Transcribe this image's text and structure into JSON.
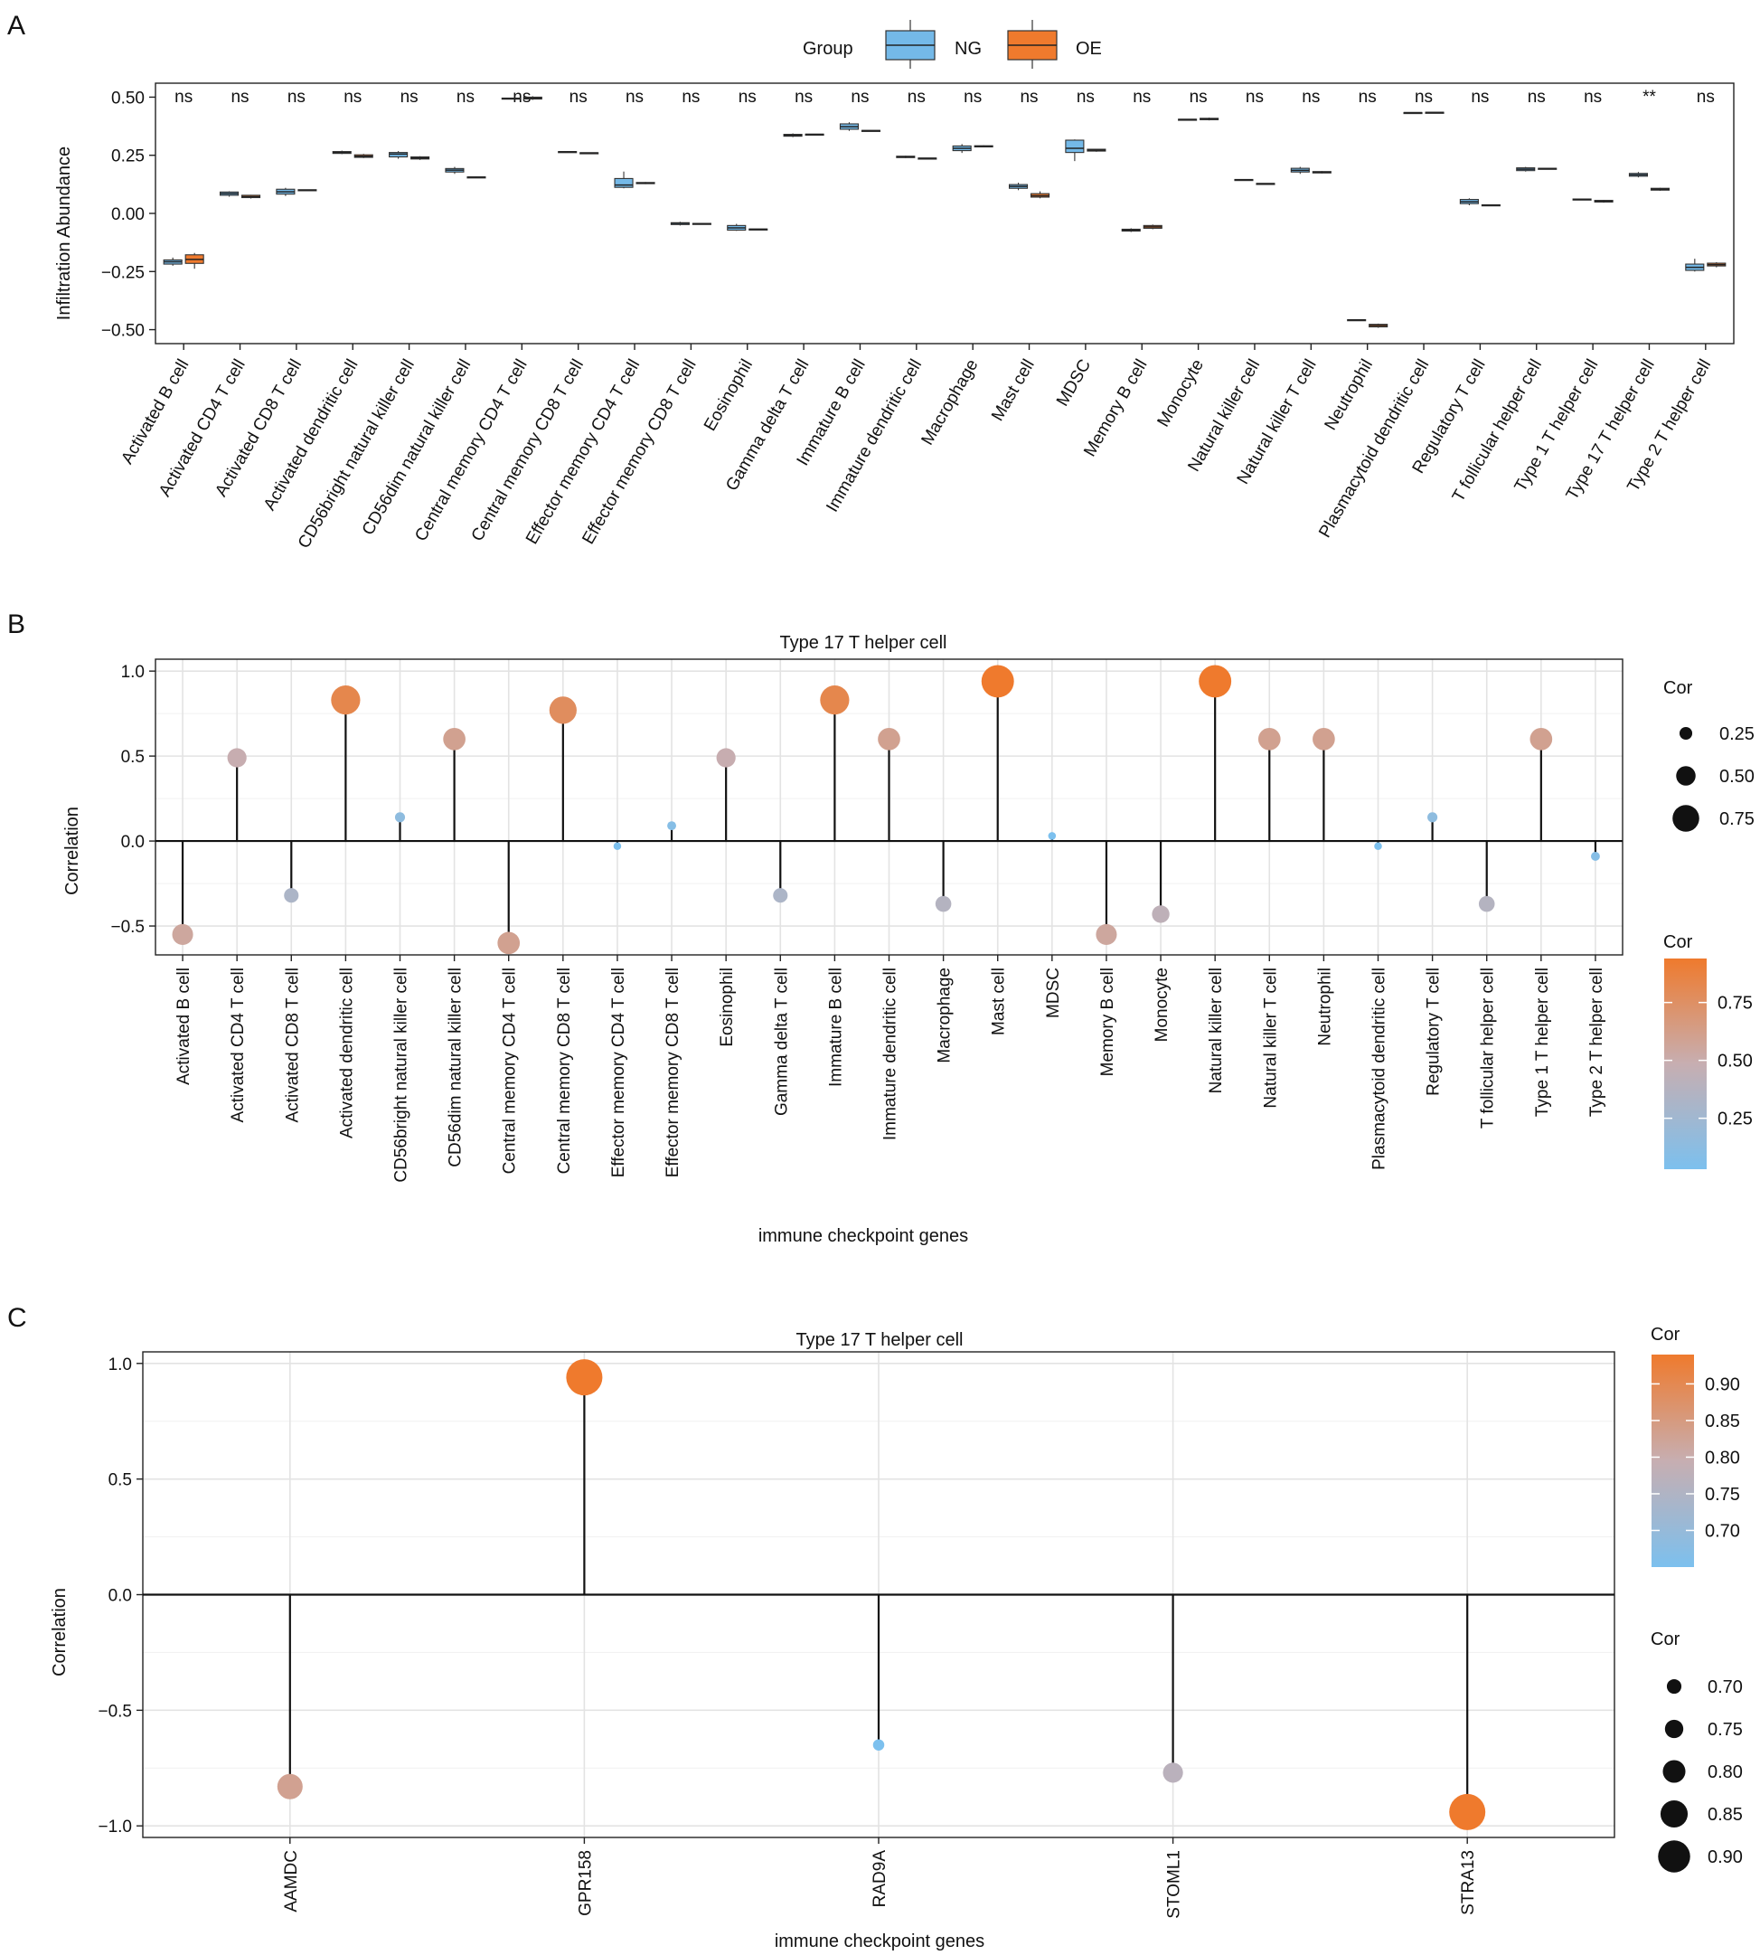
{
  "panels": {
    "a": {
      "letter": "A"
    },
    "b": {
      "letter": "B"
    },
    "c": {
      "letter": "C"
    }
  },
  "colors": {
    "ng": "#74b9e8",
    "oe": "#ef7a2d",
    "low": "#7cc0ee",
    "mid": "#c7aeb1",
    "high": "#ef7a2d"
  },
  "chart_data": [
    {
      "id": "A",
      "type": "box",
      "ylabel": "Infiltration Abundance",
      "ylim": [
        -0.56,
        0.56
      ],
      "yticks": [
        0.5,
        0.25,
        0.0,
        -0.25,
        -0.5
      ],
      "ytick_labels": [
        "0.50",
        "0.25",
        "0.00",
        "−0.25",
        "−0.50"
      ],
      "legend": {
        "title": "Group",
        "entries": [
          "NG",
          "OE"
        ]
      },
      "categories": [
        "Activated B cell",
        "Activated CD4 T cell",
        "Activated CD8 T cell",
        "Activated dendritic cell",
        "CD56bright natural killer cell",
        "CD56dim natural killer cell",
        "Central memory CD4 T cell",
        "Central memory CD8 T cell",
        "Effector memory CD4 T cell",
        "Effector memory CD8 T cell",
        "Eosinophil",
        "Gamma delta T cell",
        "Immature  B cell",
        "Immature dendritic cell",
        "Macrophage",
        "Mast cell",
        "MDSC",
        "Memory B cell",
        "Monocyte",
        "Natural killer cell",
        "Natural killer T cell",
        "Neutrophil",
        "Plasmacytoid dendritic cell",
        "Regulatory T cell",
        "T follicular helper cell",
        "Type 1 T helper cell",
        "Type 17 T helper cell",
        "Type 2 T helper cell"
      ],
      "significance": [
        "ns",
        "ns",
        "ns",
        "ns",
        "ns",
        "ns",
        "ns",
        "ns",
        "ns",
        "ns",
        "ns",
        "ns",
        "ns",
        "ns",
        "ns",
        "ns",
        "ns",
        "ns",
        "ns",
        "ns",
        "ns",
        "ns",
        "ns",
        "ns",
        "ns",
        "ns",
        "**",
        "ns"
      ],
      "series": [
        {
          "name": "NG",
          "boxes": [
            [
              -0.225,
              -0.218,
              -0.208,
              -0.2,
              -0.19
            ],
            [
              0.072,
              0.078,
              0.085,
              0.092,
              0.095
            ],
            [
              0.075,
              0.083,
              0.093,
              0.104,
              0.11
            ],
            [
              0.255,
              0.258,
              0.262,
              0.266,
              0.27
            ],
            [
              0.235,
              0.243,
              0.255,
              0.262,
              0.268
            ],
            [
              0.17,
              0.178,
              0.186,
              0.193,
              0.2
            ],
            [
              0.491,
              0.492,
              0.494,
              0.496,
              0.497
            ],
            [
              0.262,
              0.264,
              0.265,
              0.266,
              0.268
            ],
            [
              0.108,
              0.112,
              0.122,
              0.15,
              0.18
            ],
            [
              -0.052,
              -0.048,
              -0.043,
              -0.04,
              -0.036
            ],
            [
              -0.075,
              -0.072,
              -0.062,
              -0.052,
              -0.045
            ],
            [
              0.328,
              0.332,
              0.336,
              0.34,
              0.344
            ],
            [
              0.355,
              0.362,
              0.373,
              0.385,
              0.392
            ],
            [
              0.238,
              0.24,
              0.243,
              0.246,
              0.248
            ],
            [
              0.26,
              0.27,
              0.28,
              0.29,
              0.298
            ],
            [
              0.1,
              0.108,
              0.116,
              0.124,
              0.132
            ],
            [
              0.225,
              0.262,
              0.28,
              0.315,
              0.318
            ],
            [
              -0.08,
              -0.076,
              -0.072,
              -0.068,
              -0.064
            ],
            [
              0.402,
              0.403,
              0.404,
              0.405,
              0.406
            ],
            [
              0.143,
              0.144,
              0.145,
              0.146,
              0.147
            ],
            [
              0.17,
              0.178,
              0.185,
              0.194,
              0.2
            ],
            [
              -0.46,
              -0.459,
              -0.458,
              -0.457,
              -0.456
            ],
            [
              0.432,
              0.432,
              0.433,
              0.434,
              0.434
            ],
            [
              0.035,
              0.042,
              0.05,
              0.06,
              0.065
            ],
            [
              0.18,
              0.184,
              0.19,
              0.196,
              0.2
            ],
            [
              0.057,
              0.058,
              0.06,
              0.062,
              0.063
            ],
            [
              0.155,
              0.16,
              0.166,
              0.172,
              0.178
            ],
            [
              -0.25,
              -0.245,
              -0.232,
              -0.218,
              -0.195
            ]
          ]
        },
        {
          "name": "OE",
          "boxes": [
            [
              -0.238,
              -0.215,
              -0.198,
              -0.178,
              -0.17
            ],
            [
              0.064,
              0.068,
              0.072,
              0.078,
              0.08
            ],
            [
              0.098,
              0.099,
              0.1,
              0.102,
              0.103
            ],
            [
              0.238,
              0.241,
              0.246,
              0.252,
              0.256
            ],
            [
              0.23,
              0.234,
              0.238,
              0.243,
              0.246
            ],
            [
              0.154,
              0.155,
              0.156,
              0.157,
              0.158
            ],
            [
              0.488,
              0.492,
              0.496,
              0.5,
              0.504
            ],
            [
              0.258,
              0.259,
              0.26,
              0.261,
              0.262
            ],
            [
              0.126,
              0.128,
              0.13,
              0.133,
              0.135
            ],
            [
              -0.046,
              -0.045,
              -0.044,
              -0.043,
              -0.042
            ],
            [
              -0.07,
              -0.069,
              -0.068,
              -0.067,
              -0.066
            ],
            [
              0.338,
              0.339,
              0.34,
              0.341,
              0.342
            ],
            [
              0.354,
              0.355,
              0.356,
              0.357,
              0.358
            ],
            [
              0.235,
              0.236,
              0.237,
              0.238,
              0.239
            ],
            [
              0.284,
              0.286,
              0.288,
              0.291,
              0.293
            ],
            [
              0.065,
              0.07,
              0.076,
              0.085,
              0.095
            ],
            [
              0.265,
              0.268,
              0.272,
              0.276,
              0.278
            ],
            [
              -0.068,
              -0.064,
              -0.058,
              -0.052,
              -0.048
            ],
            [
              0.4,
              0.403,
              0.406,
              0.409,
              0.412
            ],
            [
              0.126,
              0.127,
              0.128,
              0.129,
              0.13
            ],
            [
              0.172,
              0.174,
              0.177,
              0.18,
              0.182
            ],
            [
              -0.492,
              -0.488,
              -0.482,
              -0.477,
              -0.474
            ],
            [
              0.432,
              0.433,
              0.434,
              0.435,
              0.436
            ],
            [
              0.032,
              0.033,
              0.035,
              0.037,
              0.038
            ],
            [
              0.191,
              0.192,
              0.193,
              0.194,
              0.195
            ],
            [
              0.046,
              0.049,
              0.052,
              0.056,
              0.058
            ],
            [
              0.097,
              0.1,
              0.104,
              0.108,
              0.11
            ],
            [
              -0.232,
              -0.226,
              -0.22,
              -0.214,
              -0.21
            ]
          ]
        }
      ]
    },
    {
      "id": "B",
      "type": "lollipop",
      "title": "Type 17 T helper cell",
      "xlabel": "immune checkpoint genes",
      "ylabel": "Correlation",
      "ylim": [
        -0.67,
        1.07
      ],
      "yticks": [
        1.0,
        0.5,
        0.0,
        -0.5
      ],
      "ytick_labels": [
        "1.0",
        "0.5",
        "0.0",
        "−0.5"
      ],
      "categories": [
        "Activated B cell",
        "Activated CD4 T cell",
        "Activated CD8 T cell",
        "Activated dendritic cell",
        "CD56bright natural killer cell",
        "CD56dim natural killer cell",
        "Central memory CD4 T cell",
        "Central memory CD8 T cell",
        "Effector memory CD4 T cell",
        "Effector memory CD8 T cell",
        "Eosinophil",
        "Gamma delta T cell",
        "Immature  B cell",
        "Immature dendritic cell",
        "Macrophage",
        "Mast cell",
        "MDSC",
        "Memory B cell",
        "Monocyte",
        "Natural killer cell",
        "Natural killer T cell",
        "Neutrophil",
        "Plasmacytoid dendritic cell",
        "Regulatory T cell",
        "T follicular helper cell",
        "Type 1 T helper cell",
        "Type 2 T helper cell"
      ],
      "values": [
        -0.55,
        0.49,
        -0.32,
        0.83,
        0.14,
        0.6,
        -0.6,
        0.77,
        -0.03,
        0.09,
        0.49,
        -0.32,
        0.83,
        0.6,
        -0.37,
        0.94,
        0.03,
        -0.55,
        -0.43,
        0.94,
        0.6,
        0.6,
        -0.03,
        0.14,
        -0.37,
        0.6,
        -0.09
      ],
      "size_legend": {
        "title": "Cor",
        "values": [
          0.25,
          0.5,
          0.75
        ],
        "labels": [
          "0.25",
          "0.50",
          "0.75"
        ]
      },
      "color_legend": {
        "title": "Cor",
        "range": [
          0.03,
          0.94
        ],
        "ticks": [
          0.75,
          0.5,
          0.25
        ],
        "tick_labels": [
          "0.75",
          "0.50",
          "0.25"
        ]
      }
    },
    {
      "id": "C",
      "type": "lollipop",
      "title": "Type 17 T helper cell",
      "xlabel": "immune checkpoint genes",
      "ylabel": "Correlation",
      "ylim": [
        -1.05,
        1.05
      ],
      "yticks": [
        1.0,
        0.5,
        0.0,
        -0.5,
        -1.0
      ],
      "ytick_labels": [
        "1.0",
        "0.5",
        "0.0",
        "−0.5",
        "−1.0"
      ],
      "categories": [
        "AAMDC",
        "GPR158",
        "RAD9A",
        "STOML1",
        "STRA13"
      ],
      "values": [
        -0.83,
        0.94,
        -0.65,
        -0.77,
        -0.94
      ],
      "color_legend": {
        "title": "Cor",
        "range": [
          0.65,
          0.94
        ],
        "ticks": [
          0.9,
          0.85,
          0.8,
          0.75,
          0.7
        ],
        "tick_labels": [
          "0.90",
          "0.85",
          "0.80",
          "0.75",
          "0.70"
        ]
      },
      "size_legend": {
        "title": "Cor",
        "values": [
          0.7,
          0.75,
          0.8,
          0.85,
          0.9
        ],
        "labels": [
          "0.70",
          "0.75",
          "0.80",
          "0.85",
          "0.90"
        ]
      }
    }
  ]
}
